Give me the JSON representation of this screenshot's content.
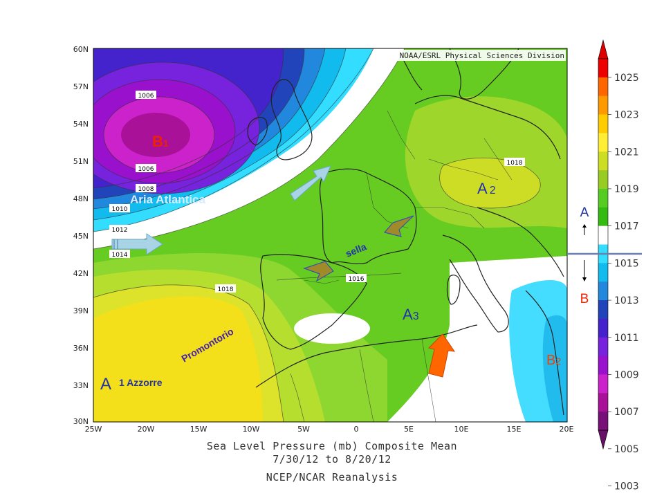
{
  "credit": "NOAA/ESRL Physical Sciences Division",
  "caption": {
    "line1": "Sea Level Pressure (mb) Composite Mean",
    "line2": "7/30/12   to 8/20/12",
    "line3": "NCEP/NCAR Reanalysis"
  },
  "axes": {
    "lat_ticks": [
      "60N",
      "57N",
      "54N",
      "51N",
      "48N",
      "45N",
      "42N",
      "39N",
      "36N",
      "33N",
      "30N"
    ],
    "lon_ticks": [
      "25W",
      "20W",
      "15W",
      "10W",
      "5W",
      "0",
      "5E",
      "10E",
      "15E",
      "20E"
    ]
  },
  "contour_labels": [
    "1006",
    "1006",
    "1008",
    "1010",
    "1012",
    "1014",
    "1018",
    "1016",
    "1018"
  ],
  "annotations": {
    "b1": "B",
    "b1_sub": "1",
    "aria": "Aria Atlantica",
    "a2": "A",
    "a2_sub": "2",
    "sella": "sella",
    "a3": "A",
    "a3_sub": "3",
    "promontorio": "Promontorio",
    "a1": "A",
    "a1_text": "1 Azzorre",
    "b2": "B",
    "b2_sub": "2"
  },
  "colorbar": {
    "labels": [
      "1025",
      "1023",
      "1021",
      "1019",
      "1017",
      "1015",
      "1013",
      "1011",
      "1009",
      "1007",
      "1005",
      "1003"
    ],
    "colors": [
      "#ee0000",
      "#ff6600",
      "#ff9900",
      "#ffcc00",
      "#ffee33",
      "#ccdd22",
      "#99cc22",
      "#55cc22",
      "#33bb11",
      "#ffffff",
      "#33ddff",
      "#11bbee",
      "#2288dd",
      "#2244bb",
      "#4422cc",
      "#7722dd",
      "#9911cc",
      "#cc22cc",
      "#aa1199",
      "#771177"
    ],
    "legend_high": "A",
    "legend_low": "B"
  },
  "colors": {
    "high_marker": "#2233aa",
    "low_marker": "#ee2200",
    "arrow_blue": "#a8d4e6",
    "arrow_orange": "#ff6600",
    "saddle": "#a08a2a"
  },
  "map_data": {
    "units": "mb",
    "period": "7/30/12 to 8/20/12",
    "centers": [
      {
        "label": "B1",
        "type": "low",
        "lon": -17,
        "lat": 53.5
      },
      {
        "label": "A2",
        "type": "high",
        "lon": 13,
        "lat": 48
      },
      {
        "label": "A3",
        "type": "high",
        "lon": 6,
        "lat": 38.5
      },
      {
        "label": "A1",
        "type": "high",
        "lon": -23,
        "lat": 33
      },
      {
        "label": "B2",
        "type": "low",
        "lon": 20,
        "lat": 34.5
      }
    ]
  }
}
